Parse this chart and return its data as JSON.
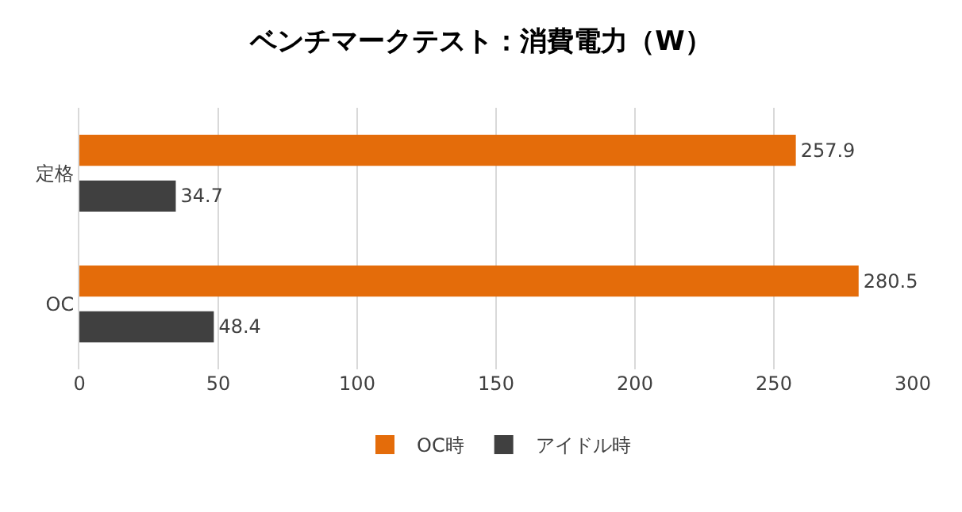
{
  "chart_data": {
    "type": "bar",
    "orientation": "horizontal",
    "title": "ベンチマークテスト：消費電力（W）",
    "categories": [
      "定格",
      "OC"
    ],
    "series": [
      {
        "name": "OC時",
        "color": "#e46c0a",
        "values": [
          257.9,
          280.5
        ]
      },
      {
        "name": "アイドル時",
        "color": "#404040",
        "values": [
          34.7,
          48.4
        ]
      }
    ],
    "xlim": [
      0,
      300
    ],
    "xticks": [
      0,
      50,
      100,
      150,
      200,
      250,
      300
    ],
    "grid": "x",
    "legend": "bottom",
    "data_labels": true
  }
}
